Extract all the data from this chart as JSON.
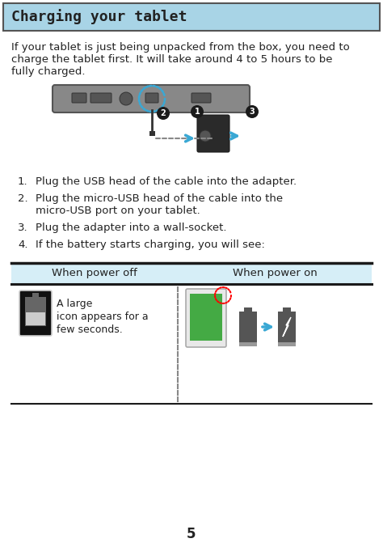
{
  "title": "Charging your tablet",
  "title_bg": "#a8d4e6",
  "title_border": "#555555",
  "body_bg": "#ffffff",
  "intro_lines": [
    "If your tablet is just being unpacked from the box, you need to",
    "charge the tablet first. It will take around 4 to 5 hours to be",
    "fully charged."
  ],
  "step_lines": [
    [
      "Plug the USB head of the cable into the adapter."
    ],
    [
      "Plug the micro-USB head of the cable into the",
      "micro-USB port on your tablet."
    ],
    [
      "Plug the adapter into a wall-socket."
    ],
    [
      "If the battery starts charging, you will see:"
    ]
  ],
  "table_header_bg": "#d6eef7",
  "table_col1": "When power off",
  "table_col2": "When power on",
  "left_caption_lines": [
    "A large",
    "icon appears for a",
    "few seconds."
  ],
  "page_number": "5",
  "font_color": "#222222",
  "title_font_size": 13,
  "body_font_size": 9.5,
  "step_font_size": 9.5
}
